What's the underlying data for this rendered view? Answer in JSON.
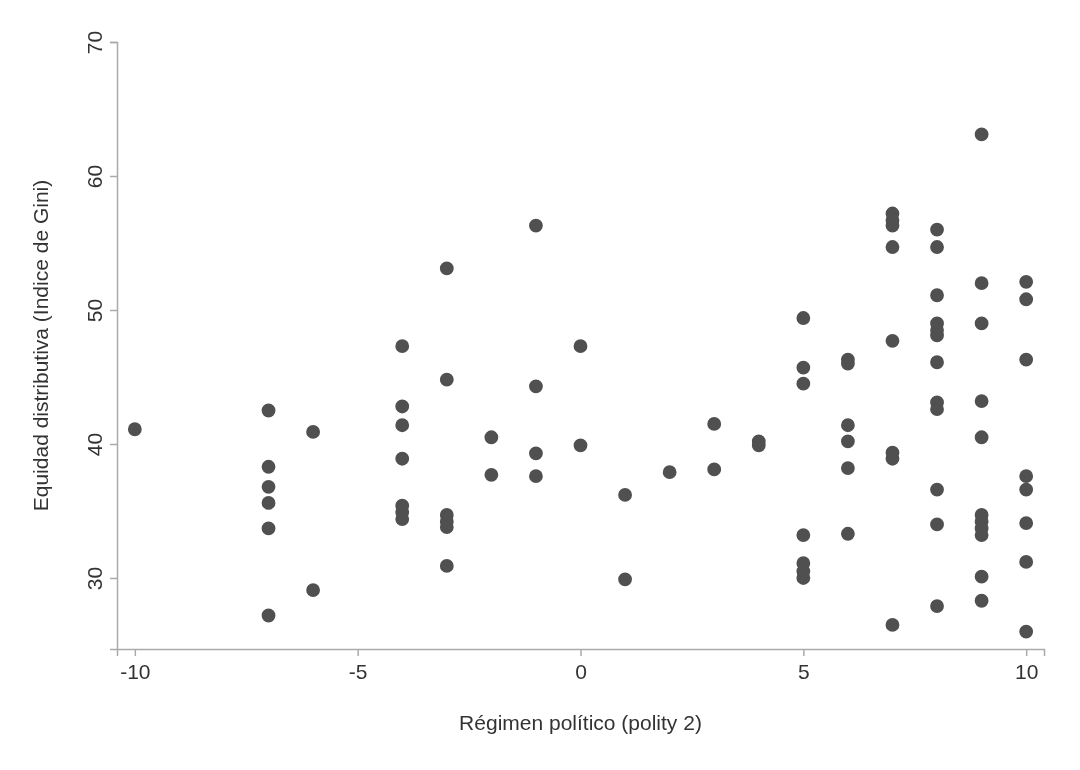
{
  "chart_data": {
    "type": "scatter",
    "xlabel": "Régimen político (polity 2)",
    "ylabel": "Equidad distributiva (Indice de Gini)",
    "xlim": [
      -10.4,
      10.4
    ],
    "xticks": [
      -10,
      -5,
      0,
      5,
      10
    ],
    "ylim": [
      24.7,
      70
    ],
    "yticks": [
      30,
      40,
      50,
      60,
      70
    ],
    "grid": false,
    "marker": "circle",
    "series": [
      {
        "color": "#505050",
        "x": [
          -10,
          -7,
          -7,
          -7,
          -7,
          -7,
          -7,
          -6,
          -6,
          -4,
          -4,
          -4,
          -4,
          -4,
          -4,
          -4,
          -3,
          -3,
          -3,
          -3,
          -3,
          -3,
          -2,
          -2,
          -1,
          -1,
          -1,
          -1,
          0,
          0,
          1,
          1,
          2,
          3,
          3,
          4,
          4,
          5,
          5,
          5,
          5,
          5,
          5,
          5,
          6,
          6,
          6,
          6,
          6,
          6,
          7,
          7,
          7,
          7,
          7,
          7,
          7,
          7,
          8,
          8,
          8,
          8,
          8,
          8,
          8,
          8,
          8,
          8,
          8,
          8,
          9,
          9,
          9,
          9,
          9,
          9,
          9,
          9,
          9,
          9,
          9,
          10,
          10,
          10,
          10,
          10,
          10,
          10,
          10
        ],
        "values": [
          41.1,
          42.5,
          38.3,
          36.8,
          35.6,
          33.7,
          27.2,
          40.9,
          29.1,
          47.3,
          42.8,
          41.4,
          38.9,
          35.4,
          34.9,
          34.4,
          53.1,
          44.8,
          34.7,
          34.2,
          33.8,
          30.9,
          40.5,
          37.7,
          56.3,
          44.3,
          39.3,
          37.6,
          47.3,
          39.9,
          36.2,
          29.9,
          37.9,
          41.5,
          38.1,
          40.2,
          39.9,
          49.4,
          45.7,
          44.5,
          33.2,
          31.1,
          30.5,
          30.0,
          46.3,
          46.0,
          41.4,
          40.2,
          38.2,
          33.3,
          57.2,
          56.7,
          56.3,
          54.7,
          47.7,
          39.35,
          38.9,
          26.5,
          56.0,
          54.7,
          51.1,
          49.0,
          48.5,
          48.1,
          46.1,
          43.1,
          42.6,
          36.6,
          34.0,
          27.9,
          63.1,
          52.0,
          49.0,
          43.2,
          40.5,
          34.7,
          34.2,
          33.7,
          33.2,
          30.1,
          28.3,
          52.1,
          50.8,
          46.3,
          37.6,
          36.6,
          34.1,
          31.2,
          26.0
        ]
      }
    ]
  }
}
